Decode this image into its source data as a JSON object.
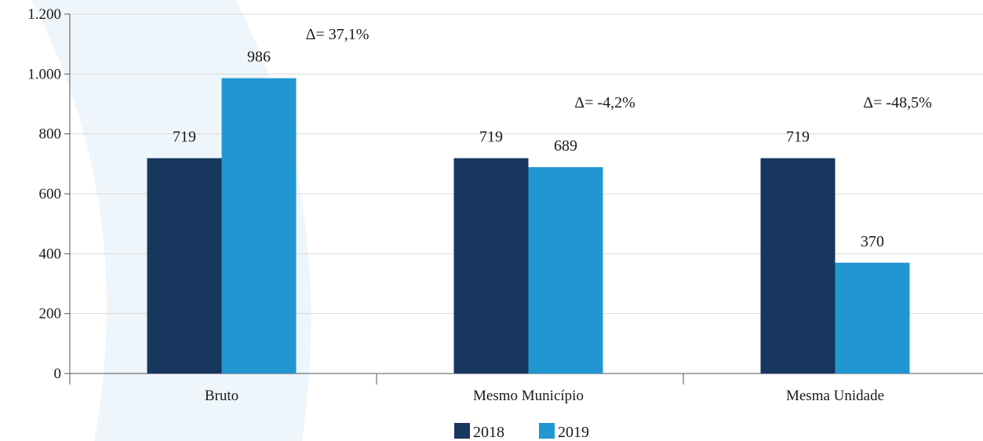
{
  "chart_data": {
    "type": "bar",
    "title": "",
    "xlabel": "",
    "ylabel": "",
    "categories": [
      "Bruto",
      "Mesmo Município",
      "Mesma Unidade"
    ],
    "series": [
      {
        "name": "2018",
        "values": [
          719,
          719,
          719
        ],
        "color": "#17375e"
      },
      {
        "name": "2019",
        "values": [
          986,
          689,
          370
        ],
        "color": "#2196d1"
      }
    ],
    "data_labels": [
      [
        "719",
        "719",
        "719"
      ],
      [
        "986",
        "689",
        "370"
      ]
    ],
    "annotations": [
      "Δ= 37,1%",
      "Δ= -4,2%",
      "Δ= -48,5%"
    ],
    "ylim": [
      0,
      1200
    ],
    "yticks": [
      0,
      200,
      400,
      600,
      800,
      1000,
      1200
    ],
    "ytick_labels": [
      "0",
      "200",
      "400",
      "600",
      "800",
      "1.000",
      "1.200"
    ],
    "grid": true,
    "legend_position": "bottom",
    "background_accent_color": "#eef6fb"
  }
}
